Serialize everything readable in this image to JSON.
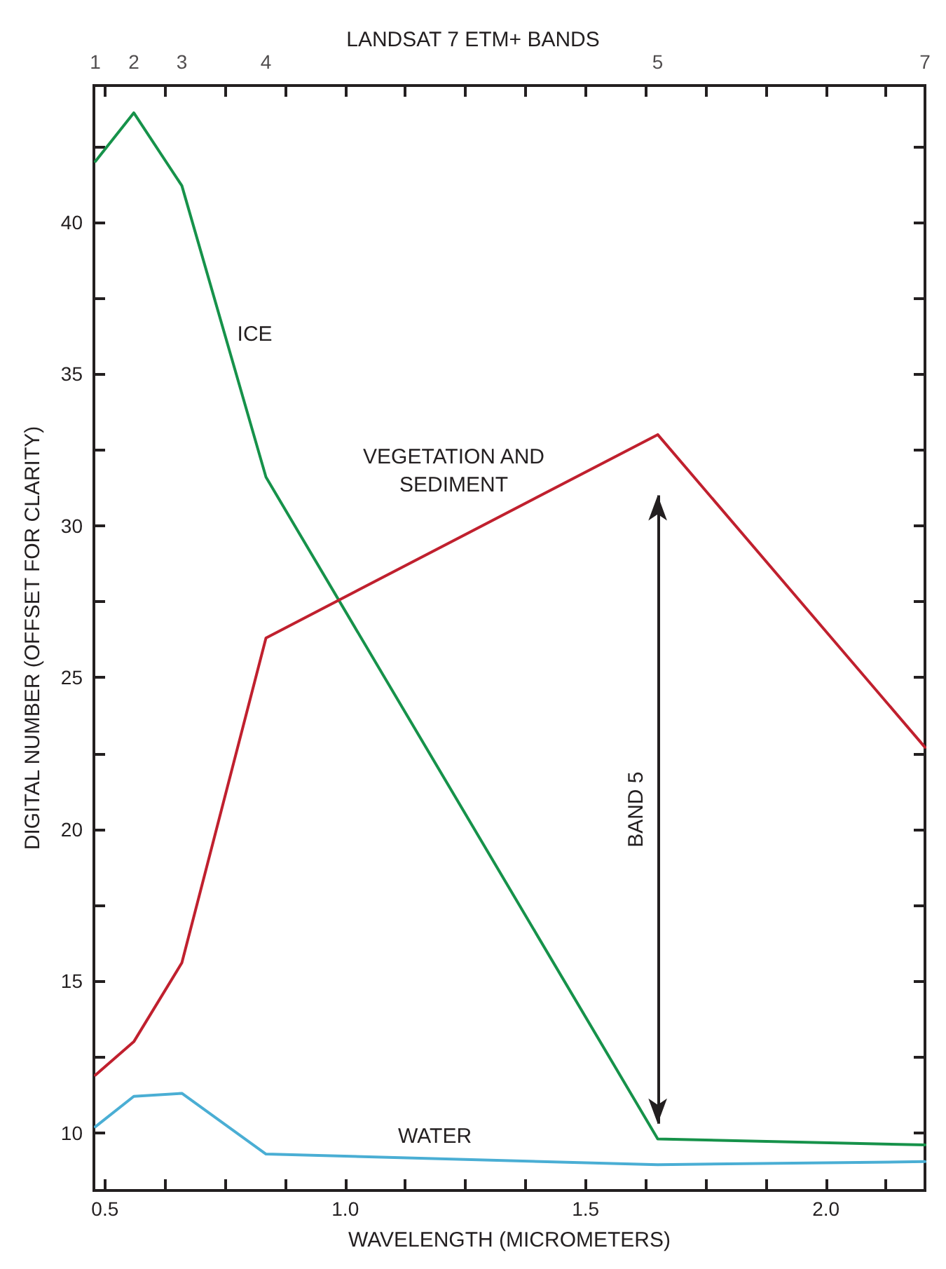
{
  "chart_data": {
    "type": "line",
    "title": "LANDSAT 7 ETM+ BANDS",
    "xlabel": "WAVELENGTH (MICROMETERS)",
    "ylabel": "DIGITAL NUMBER (OFFSET FOR CLARITY)",
    "x": [
      0.48,
      0.56,
      0.66,
      0.835,
      1.65,
      2.206
    ],
    "series": [
      {
        "name": "ICE",
        "color": "#16924a",
        "values": [
          42.0,
          43.6,
          41.2,
          31.6,
          9.8,
          9.6
        ]
      },
      {
        "name": "VEGETATION AND\nSEDIMENT",
        "color": "#c0202e",
        "values": [
          11.9,
          13.0,
          15.6,
          26.3,
          33.0,
          22.7
        ]
      },
      {
        "name": "WATER",
        "color": "#4aaed4",
        "values": [
          10.2,
          11.2,
          11.3,
          9.3,
          8.95,
          9.05
        ]
      }
    ],
    "annotations": [
      "1",
      "2",
      "3",
      "4",
      "5",
      "7",
      "BAND 5"
    ],
    "xlim": [
      0.477,
      2.206
    ],
    "xticks": [
      0.5,
      {
        "value": 0.625,
        "label": null
      },
      {
        "value": 0.75,
        "label": null
      },
      {
        "value": 0.875,
        "label": null
      },
      {
        "value": 1,
        "label": "1.0"
      },
      {
        "value": 1.125,
        "label": null
      },
      {
        "value": 1.25,
        "label": null
      },
      {
        "value": 1.375,
        "label": null
      },
      1.5,
      {
        "value": 1.625,
        "label": null
      },
      {
        "value": 1.75,
        "label": null
      },
      {
        "value": 1.875,
        "label": null
      },
      {
        "value": 2,
        "label": "2.0"
      },
      {
        "value": 2.125,
        "label": null
      }
    ],
    "ylim": [
      8.1,
      44.5
    ],
    "yticks": [
      10,
      {
        "value": 12.5,
        "label": null
      },
      15,
      {
        "value": 17.5,
        "label": null
      },
      20,
      {
        "value": 22.5,
        "label": null
      },
      25,
      {
        "value": 27.5,
        "label": null
      },
      30,
      {
        "value": 32.5,
        "label": null
      },
      35,
      {
        "value": 37.5,
        "label": null
      },
      40,
      {
        "value": 42.5,
        "label": null
      }
    ],
    "grid": false,
    "legend": false,
    "marker": "none",
    "line_style": "solid"
  }
}
